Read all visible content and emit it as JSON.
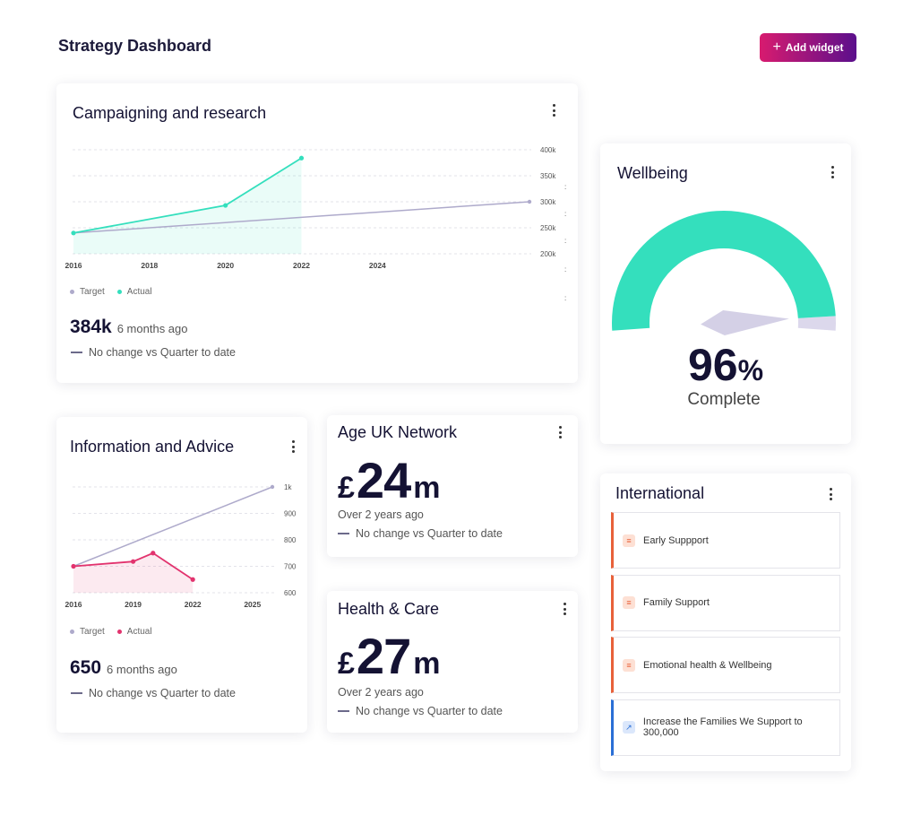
{
  "header": {
    "title": "Strategy Dashboard",
    "add_widget_label": "Add widget"
  },
  "colors": {
    "actual_green": "#34dfbd",
    "target_purple": "#aeaacb",
    "actual_pink": "#e2336e",
    "accent_gradient_start": "#d81b6f",
    "accent_gradient_end": "#5b0f8c"
  },
  "campaigning": {
    "title": "Campaigning and research",
    "legend": {
      "target": "Target",
      "actual": "Actual"
    },
    "metric": "384k",
    "metric_time": "6 months ago",
    "change": "No change vs Quarter to date",
    "chart_data": {
      "type": "line",
      "x_ticks": [
        "2016",
        "2018",
        "2020",
        "2022",
        "2024"
      ],
      "y_ticks": [
        "400k",
        "350k",
        "300k",
        "250k",
        "200k"
      ],
      "ylim": [
        200000,
        400000
      ],
      "series": [
        {
          "name": "Target",
          "x": [
            2016,
            2028
          ],
          "values": [
            240000,
            300000
          ]
        },
        {
          "name": "Actual",
          "x": [
            2016,
            2020,
            2022
          ],
          "values": [
            240000,
            293000,
            384000
          ]
        }
      ]
    }
  },
  "wellbeing": {
    "title": "Wellbeing",
    "percent_value": 96,
    "percent_number": "96",
    "percent_sign": "%",
    "label": "Complete"
  },
  "info_advice": {
    "title": "Information and Advice",
    "legend": {
      "target": "Target",
      "actual": "Actual"
    },
    "metric": "650",
    "metric_time": "6 months ago",
    "change": "No change vs Quarter to date",
    "chart_data": {
      "type": "line",
      "x_ticks": [
        "2016",
        "2019",
        "2022",
        "2025"
      ],
      "y_ticks": [
        "1k",
        "900",
        "800",
        "700",
        "600"
      ],
      "ylim": [
        600,
        1000
      ],
      "series": [
        {
          "name": "Target",
          "x": [
            2016,
            2026
          ],
          "values": [
            700,
            1000
          ]
        },
        {
          "name": "Actual",
          "x": [
            2016,
            2019,
            2020,
            2022
          ],
          "values": [
            700,
            718,
            750,
            650
          ]
        }
      ]
    }
  },
  "age_uk": {
    "title": "Age UK Network",
    "currency": "£",
    "value": "24",
    "unit": "m",
    "time": "Over 2 years ago",
    "change": "No change vs Quarter to date"
  },
  "health_care": {
    "title": "Health & Care",
    "currency": "£",
    "value": "27",
    "unit": "m",
    "time": "Over 2 years ago",
    "change": "No change vs Quarter to date"
  },
  "international": {
    "title": "International",
    "items": [
      {
        "label": "Early Suppport",
        "color": "#e8613a",
        "icon": "list-icon"
      },
      {
        "label": "Family Support",
        "color": "#e8613a",
        "icon": "list-icon"
      },
      {
        "label": "Emotional health & Wellbeing",
        "color": "#e8613a",
        "icon": "list-icon"
      },
      {
        "label": "Increase the Families We Support to 300,000",
        "color": "#2a6fd6",
        "icon": "link-icon"
      }
    ]
  }
}
